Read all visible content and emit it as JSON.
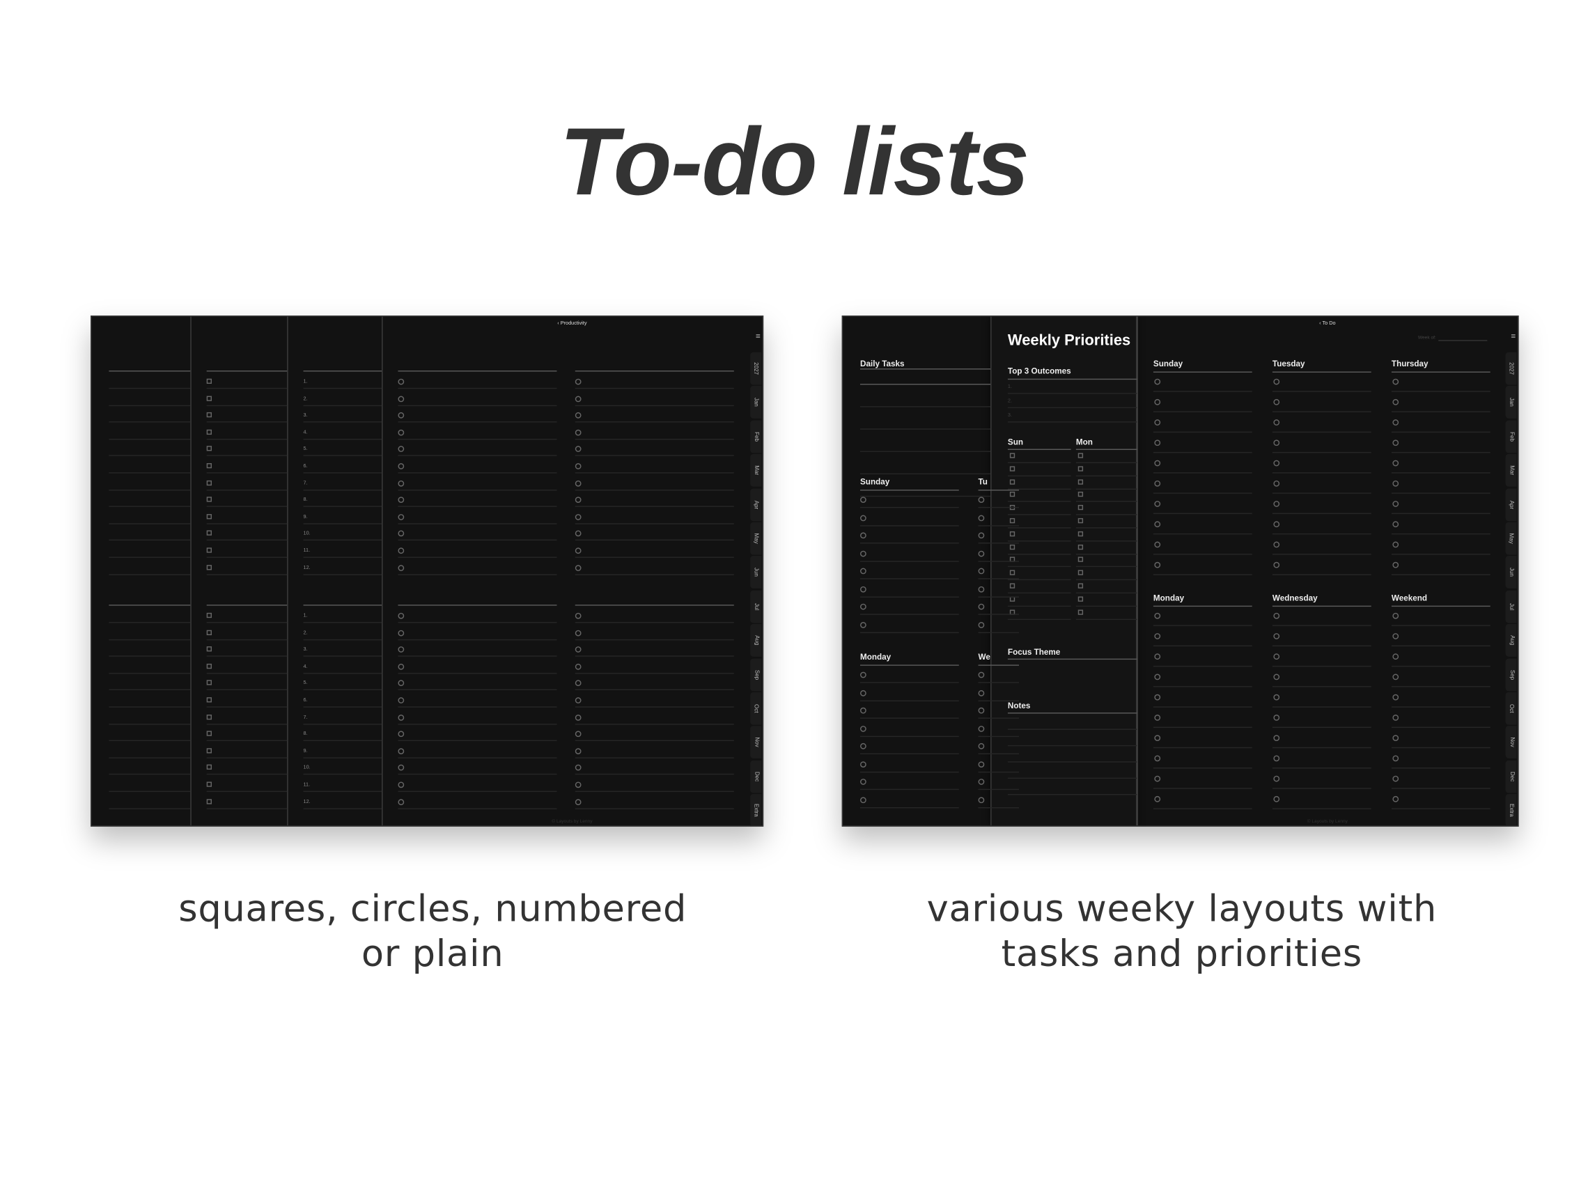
{
  "title": "To-do lists",
  "captions": {
    "left": [
      "squares, circles, numbered",
      "or plain"
    ],
    "right": [
      "various weeky layouts with",
      "tasks and priorities"
    ]
  },
  "tabs": [
    "2027",
    "Jan",
    "Feb",
    "Mar",
    "Apr",
    "May",
    "Jun",
    "Jul",
    "Aug",
    "Sep",
    "Oct",
    "Nov",
    "Dec",
    "Extra"
  ],
  "footer": "© Layouts by Lenny",
  "left_planner": {
    "breadcrumb": "‹ Productivity",
    "numbers": [
      "1.",
      "2.",
      "3.",
      "4.",
      "5.",
      "6.",
      "7.",
      "8.",
      "9.",
      "10.",
      "11.",
      "12."
    ]
  },
  "right_planner": {
    "breadcrumb": "‹ To Do",
    "week_of": "Week of:",
    "daily_tasks": "Daily Tasks",
    "left_days": [
      "Sunday",
      "Tu",
      "Monday",
      "We"
    ],
    "weekly_priorities": "Weekly Priorities",
    "top3": "Top 3 Outcomes",
    "top3_numbers": [
      "1.",
      "2.",
      "3."
    ],
    "sun": "Sun",
    "mon": "Mon",
    "focus_theme": "Focus Theme",
    "notes": "Notes",
    "days_top": [
      "Sunday",
      "Tuesday",
      "Thursday"
    ],
    "days_bottom": [
      "Monday",
      "Wednesday",
      "Weekend"
    ]
  }
}
